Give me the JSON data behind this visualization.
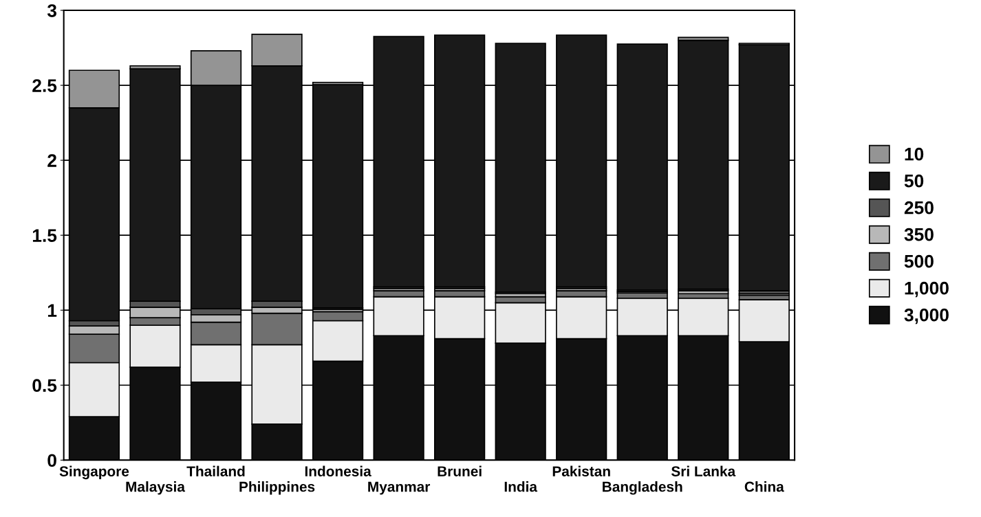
{
  "chart_data": {
    "type": "bar",
    "stacked": true,
    "categories": [
      "Singapore",
      "Malaysia",
      "Thailand",
      "Philippines",
      "Indonesia",
      "Myanmar",
      "Brunei",
      "India",
      "Pakistan",
      "Bangladesh",
      "Sri Lanka",
      "China"
    ],
    "series": [
      {
        "name": "3,000",
        "color": "#111111",
        "values": [
          0.29,
          0.62,
          0.52,
          0.24,
          0.66,
          0.83,
          0.81,
          0.78,
          0.81,
          0.83,
          0.83,
          0.79
        ]
      },
      {
        "name": "1,000",
        "color": "#eaeaea",
        "values": [
          0.36,
          0.28,
          0.25,
          0.53,
          0.27,
          0.26,
          0.28,
          0.27,
          0.28,
          0.25,
          0.25,
          0.28
        ]
      },
      {
        "name": "500",
        "color": "#707070",
        "values": [
          0.19,
          0.05,
          0.15,
          0.21,
          0.06,
          0.04,
          0.04,
          0.04,
          0.04,
          0.035,
          0.03,
          0.03
        ]
      },
      {
        "name": "350",
        "color": "#b8b8b8",
        "values": [
          0.055,
          0.07,
          0.05,
          0.04,
          0.015,
          0.015,
          0.015,
          0.02,
          0.015,
          0.01,
          0.02,
          0.01
        ]
      },
      {
        "name": "250",
        "color": "#555555",
        "values": [
          0.035,
          0.04,
          0.04,
          0.04,
          0.01,
          0.01,
          0.01,
          0.01,
          0.01,
          0.01,
          0.01,
          0.02
        ]
      },
      {
        "name": "50",
        "color": "#1a1a1a",
        "values": [
          1.42,
          1.55,
          1.49,
          1.57,
          1.49,
          1.67,
          1.68,
          1.66,
          1.68,
          1.64,
          1.66,
          1.64
        ]
      },
      {
        "name": "10",
        "color": "#949494",
        "values": [
          0.25,
          0.02,
          0.23,
          0.21,
          0.015,
          0,
          0,
          0,
          0,
          0,
          0.02,
          0.01
        ]
      }
    ],
    "ylim": [
      0,
      3
    ],
    "yticks": [
      0,
      0.5,
      1,
      1.5,
      2,
      2.5,
      3
    ],
    "grid": "y",
    "legend": "right"
  }
}
